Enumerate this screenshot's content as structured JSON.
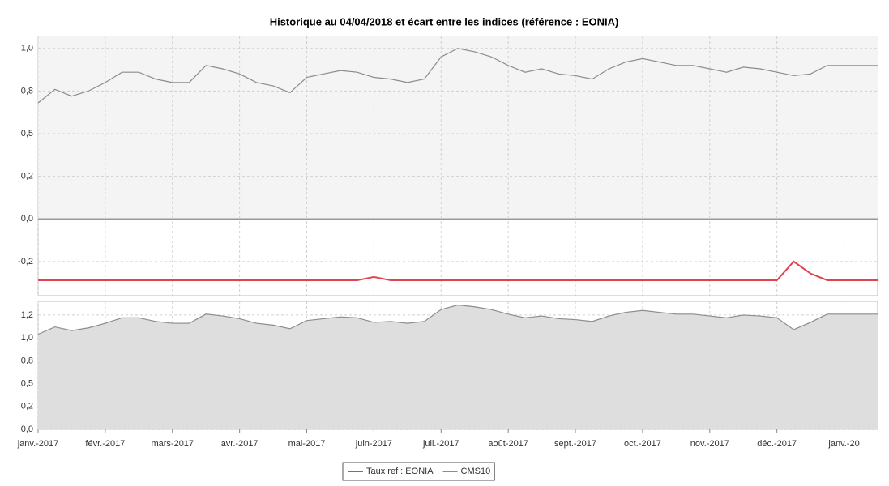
{
  "chart_data": {
    "type": "line",
    "title": "Historique au 04/04/2018 et écart entre les indices (référence : EONIA)",
    "x": [
      0,
      0.25,
      0.5,
      0.75,
      1,
      1.25,
      1.5,
      1.75,
      2,
      2.25,
      2.5,
      2.75,
      3,
      3.25,
      3.5,
      3.75,
      4,
      4.25,
      4.5,
      4.75,
      5,
      5.25,
      5.5,
      5.75,
      6,
      6.25,
      6.5,
      6.75,
      7,
      7.25,
      7.5,
      7.75,
      8,
      8.25,
      8.5,
      8.75,
      9,
      9.25,
      9.5,
      9.75,
      10,
      10.25,
      10.5,
      10.75,
      11,
      11.25,
      11.5,
      11.75,
      12,
      12.25,
      12.5
    ],
    "xlim": [
      0,
      12.5
    ],
    "xticks": [
      {
        "value": 0,
        "label": "janv.-2017"
      },
      {
        "value": 1,
        "label": "févr.-2017"
      },
      {
        "value": 2,
        "label": "mars-2017"
      },
      {
        "value": 3,
        "label": "avr.-2017"
      },
      {
        "value": 4,
        "label": "mai-2017"
      },
      {
        "value": 5,
        "label": "juin-2017"
      },
      {
        "value": 6,
        "label": "juil.-2017"
      },
      {
        "value": 7,
        "label": "août-2017"
      },
      {
        "value": 8,
        "label": "sept.-2017"
      },
      {
        "value": 9,
        "label": "oct.-2017"
      },
      {
        "value": 10,
        "label": "nov.-2017"
      },
      {
        "value": 11,
        "label": "déc.-2017"
      },
      {
        "value": 12,
        "label": "janv.-20"
      }
    ],
    "ylim": [
      -0.45,
      1.07
    ],
    "yticks": [
      {
        "value": -0.25,
        "label": "-0,2"
      },
      {
        "value": 0,
        "label": "0,0"
      },
      {
        "value": 0.25,
        "label": "0,2"
      },
      {
        "value": 0.5,
        "label": "0,5"
      },
      {
        "value": 0.75,
        "label": "0,8"
      },
      {
        "value": 1,
        "label": "1,0"
      }
    ],
    "grid": true,
    "legend": "bottom",
    "series": [
      {
        "name": "Taux ref : EONIA",
        "color": "#e0434f",
        "values": [
          -0.36,
          -0.36,
          -0.36,
          -0.36,
          -0.36,
          -0.36,
          -0.36,
          -0.36,
          -0.36,
          -0.36,
          -0.36,
          -0.36,
          -0.36,
          -0.36,
          -0.36,
          -0.36,
          -0.36,
          -0.36,
          -0.36,
          -0.36,
          -0.34,
          -0.36,
          -0.36,
          -0.36,
          -0.36,
          -0.36,
          -0.36,
          -0.36,
          -0.36,
          -0.36,
          -0.36,
          -0.36,
          -0.36,
          -0.36,
          -0.36,
          -0.36,
          -0.36,
          -0.36,
          -0.36,
          -0.36,
          -0.36,
          -0.36,
          -0.36,
          -0.36,
          -0.36,
          -0.25,
          -0.32,
          -0.36,
          -0.36,
          -0.36,
          -0.36
        ]
      },
      {
        "name": "CMS10",
        "color": "#8c8c8c",
        "values": [
          0.68,
          0.76,
          0.72,
          0.75,
          0.8,
          0.86,
          0.86,
          0.82,
          0.8,
          0.8,
          0.9,
          0.88,
          0.85,
          0.8,
          0.78,
          0.74,
          0.83,
          0.85,
          0.87,
          0.86,
          0.83,
          0.82,
          0.8,
          0.82,
          0.95,
          1.0,
          0.98,
          0.95,
          0.9,
          0.86,
          0.88,
          0.85,
          0.84,
          0.82,
          0.88,
          0.92,
          0.94,
          0.92,
          0.9,
          0.9,
          0.88,
          0.86,
          0.89,
          0.88,
          0.86,
          0.84,
          0.85,
          0.9,
          0.9,
          0.9,
          0.9
        ]
      }
    ],
    "lower_panel": {
      "type": "area",
      "color": "#8c8c8c",
      "fill": "#dedede",
      "ylim": [
        0,
        1.4
      ],
      "yticks": [
        {
          "value": 0,
          "label": "0,0"
        },
        {
          "value": 0.25,
          "label": "0,2"
        },
        {
          "value": 0.5,
          "label": "0,5"
        },
        {
          "value": 0.75,
          "label": "0,8"
        },
        {
          "value": 1,
          "label": "1,0"
        },
        {
          "value": 1.25,
          "label": "1,2"
        }
      ],
      "values": [
        1.04,
        1.12,
        1.08,
        1.11,
        1.16,
        1.22,
        1.22,
        1.18,
        1.16,
        1.16,
        1.26,
        1.24,
        1.21,
        1.16,
        1.14,
        1.1,
        1.19,
        1.21,
        1.23,
        1.22,
        1.17,
        1.18,
        1.16,
        1.18,
        1.31,
        1.36,
        1.34,
        1.31,
        1.26,
        1.22,
        1.24,
        1.21,
        1.2,
        1.18,
        1.24,
        1.28,
        1.3,
        1.28,
        1.26,
        1.26,
        1.24,
        1.22,
        1.25,
        1.24,
        1.22,
        1.09,
        1.17,
        1.26,
        1.26,
        1.26,
        1.26
      ]
    }
  }
}
